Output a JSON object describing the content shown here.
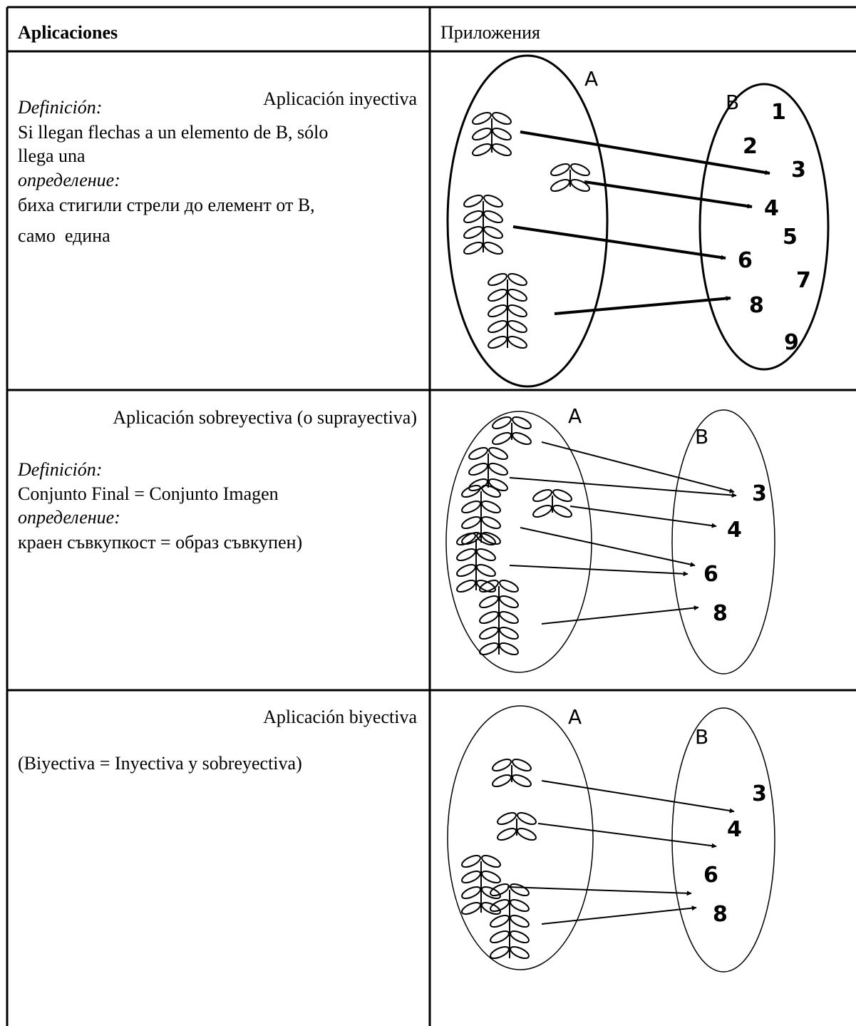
{
  "table": {
    "header": [
      "Aplicaciones",
      "Приложения"
    ],
    "rows": [
      {
        "title": "Aplicación inyectiva",
        "text": [
          "Definición:",
          "Si llegan flechas a un elemento de B, sólo",
          "llega una",
          "определение:",
          "биха стигили стрели до елемент от В,",
          "само  едина"
        ],
        "diagram": {
          "set_a": "A",
          "set_b": "B",
          "elements": [
            "1",
            "2",
            "3",
            "4",
            "5",
            "6",
            "7",
            "8",
            "9"
          ]
        }
      },
      {
        "title": "Aplicación sobreyectiva (o suprayectiva)",
        "text": [
          "Definición:",
          "Conjunto Final = Conjunto Imagen",
          "определение:",
          "краен съвкупкост = образ съвкупен)"
        ],
        "diagram": {
          "set_a": "A",
          "set_b": "B",
          "elements": [
            "3",
            "4",
            "6",
            "8"
          ]
        }
      },
      {
        "title": "Aplicación biyectiva",
        "text": [
          "(Biyectiva = Inyectiva y sobreyectiva)"
        ],
        "diagram": {
          "set_a": "A",
          "set_b": "B",
          "elements": [
            "3",
            "4",
            "6",
            "8"
          ]
        }
      }
    ]
  }
}
